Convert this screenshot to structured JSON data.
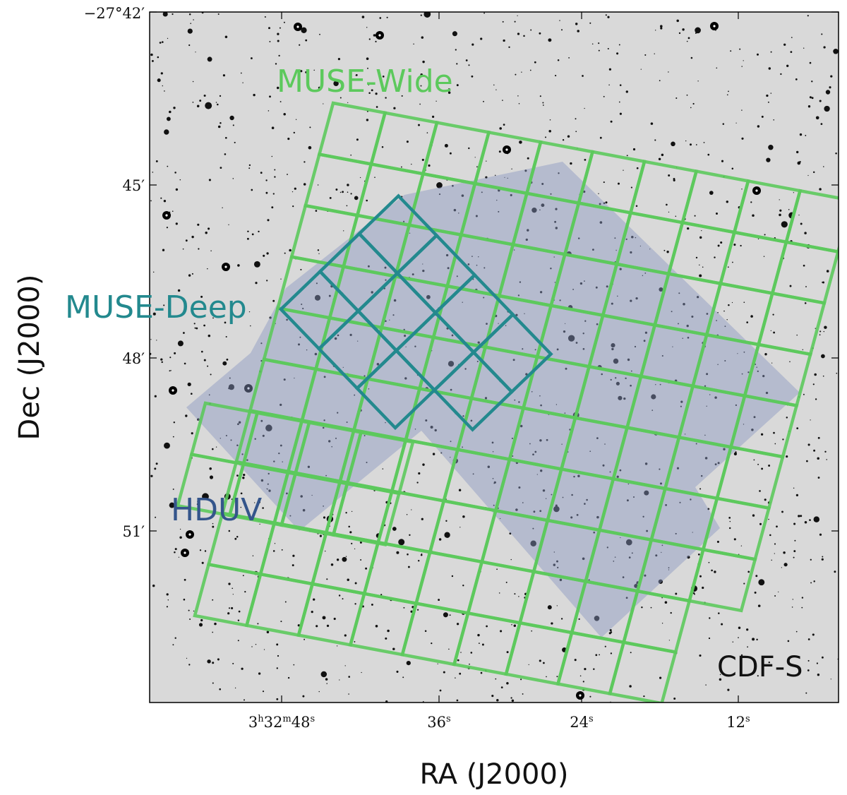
{
  "field_label": "CDF-S",
  "axes": {
    "xlabel": "RA (J2000)",
    "ylabel": "Dec (J2000)",
    "x_ticks": [
      {
        "h": "3",
        "m": "32",
        "s": "48",
        "full": true
      },
      {
        "s": "36"
      },
      {
        "s": "24"
      },
      {
        "s": "12"
      }
    ],
    "y_ticks": [
      {
        "sign": "−",
        "deg": "27",
        "min": "42",
        "full": true
      },
      {
        "min": "45"
      },
      {
        "min": "48"
      },
      {
        "min": "51"
      }
    ]
  },
  "surveys": [
    {
      "name": "MUSE-Wide",
      "color": "#5cc95c"
    },
    {
      "name": "MUSE-Deep",
      "color": "#23898e"
    },
    {
      "name": "HDUV",
      "color": "#34558b"
    }
  ],
  "colors": {
    "background": "#d9d9d9",
    "hduv_fill": "#8a96c2",
    "muse_wide": "#5cc95c",
    "muse_deep": "#23898e"
  }
}
